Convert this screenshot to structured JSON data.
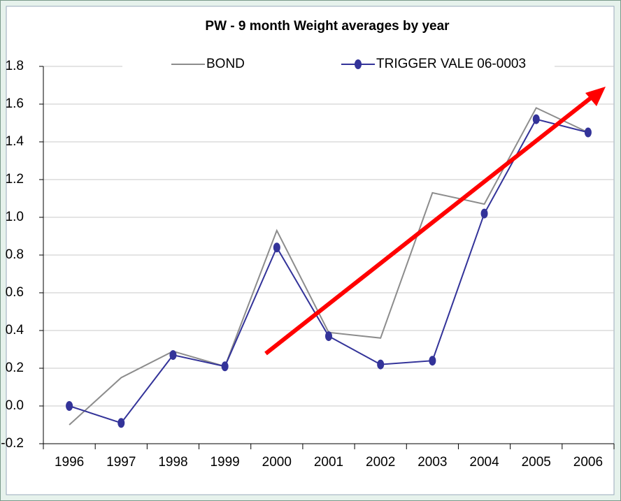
{
  "chart_data": {
    "type": "line",
    "title": "PW - 9 month Weight averages by year",
    "categories": [
      "1996",
      "1997",
      "1998",
      "1999",
      "2000",
      "2001",
      "2002",
      "2003",
      "2004",
      "2005",
      "2006"
    ],
    "series": [
      {
        "name": "BOND",
        "color": "#8c8c8c",
        "values": [
          -0.1,
          0.15,
          0.29,
          0.21,
          0.93,
          0.39,
          0.36,
          1.13,
          1.07,
          1.58,
          1.45
        ]
      },
      {
        "name": "TRIGGER VALE 06-0003",
        "color": "#333399",
        "values": [
          0.0,
          -0.09,
          0.27,
          0.21,
          0.84,
          0.37,
          0.22,
          0.24,
          1.02,
          1.52,
          1.45
        ]
      }
    ],
    "ylim": [
      -0.2,
      1.8
    ],
    "yticks": [
      -0.2,
      {
        "value": 0,
        "label": "0.0"
      },
      0.2,
      0.4,
      0.6,
      0.8,
      {
        "value": 1,
        "label": "1.0"
      },
      1.2,
      1.4,
      1.6,
      1.8
    ],
    "grid": true,
    "legend": "top"
  }
}
